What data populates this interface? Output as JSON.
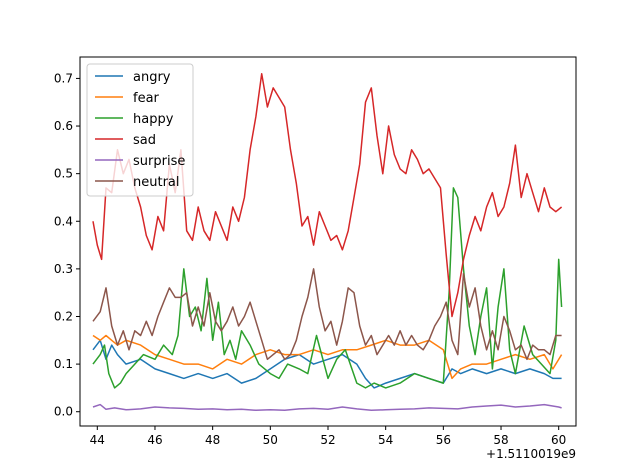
{
  "chart_data": {
    "type": "line",
    "title": "",
    "xlabel": "",
    "ylabel": "",
    "x_offset_label": "+1.5110019e9",
    "xlim": [
      43.4,
      60.6
    ],
    "ylim": [
      -0.03,
      0.745
    ],
    "x_ticks": [
      44,
      46,
      48,
      50,
      52,
      54,
      56,
      58,
      60
    ],
    "x_tick_labels": [
      "44",
      "46",
      "48",
      "50",
      "52",
      "54",
      "56",
      "58",
      "60"
    ],
    "y_ticks": [
      0.0,
      0.1,
      0.2,
      0.3,
      0.4,
      0.5,
      0.6,
      0.7
    ],
    "y_tick_labels": [
      "0.0",
      "0.1",
      "0.2",
      "0.3",
      "0.4",
      "0.5",
      "0.6",
      "0.7"
    ],
    "grid": false,
    "legend_position": "upper-left",
    "series": [
      {
        "name": "angry",
        "color": "#1f77b4",
        "x": [
          43.85,
          44.1,
          44.3,
          44.5,
          44.7,
          45.0,
          45.5,
          46.0,
          46.5,
          47.0,
          47.5,
          48.0,
          48.5,
          49.0,
          49.5,
          50.0,
          50.5,
          51.0,
          51.5,
          52.0,
          52.5,
          53.0,
          53.3,
          53.6,
          54.0,
          54.5,
          55.0,
          55.5,
          56.0,
          56.3,
          56.6,
          57.0,
          57.5,
          58.0,
          58.5,
          59.0,
          59.5,
          59.8,
          60.1
        ],
        "y": [
          0.13,
          0.15,
          0.11,
          0.14,
          0.12,
          0.1,
          0.11,
          0.09,
          0.08,
          0.07,
          0.08,
          0.07,
          0.08,
          0.06,
          0.07,
          0.09,
          0.11,
          0.12,
          0.1,
          0.11,
          0.12,
          0.1,
          0.07,
          0.05,
          0.06,
          0.07,
          0.08,
          0.07,
          0.06,
          0.09,
          0.08,
          0.09,
          0.08,
          0.09,
          0.08,
          0.09,
          0.08,
          0.07,
          0.07
        ]
      },
      {
        "name": "fear",
        "color": "#ff7f0e",
        "x": [
          43.85,
          44.1,
          44.3,
          44.5,
          44.7,
          45.0,
          45.5,
          46.0,
          46.5,
          47.0,
          47.5,
          48.0,
          48.5,
          49.0,
          49.5,
          50.0,
          50.5,
          51.0,
          51.5,
          52.0,
          52.5,
          53.0,
          53.5,
          54.0,
          54.5,
          55.0,
          55.5,
          56.0,
          56.3,
          56.6,
          57.0,
          57.5,
          58.0,
          58.5,
          59.0,
          59.5,
          59.8,
          60.1
        ],
        "y": [
          0.16,
          0.15,
          0.16,
          0.15,
          0.14,
          0.15,
          0.14,
          0.12,
          0.11,
          0.1,
          0.1,
          0.09,
          0.11,
          0.1,
          0.12,
          0.13,
          0.12,
          0.12,
          0.13,
          0.12,
          0.13,
          0.13,
          0.14,
          0.15,
          0.14,
          0.14,
          0.15,
          0.13,
          0.07,
          0.09,
          0.1,
          0.1,
          0.11,
          0.12,
          0.11,
          0.12,
          0.09,
          0.12
        ]
      },
      {
        "name": "happy",
        "color": "#2ca02c",
        "x": [
          43.85,
          44.1,
          44.25,
          44.4,
          44.6,
          44.8,
          45.0,
          45.3,
          45.6,
          46.0,
          46.3,
          46.6,
          46.8,
          47.0,
          47.2,
          47.4,
          47.6,
          47.8,
          48.0,
          48.2,
          48.4,
          48.6,
          48.8,
          49.0,
          49.3,
          49.6,
          50.0,
          50.3,
          50.6,
          51.0,
          51.3,
          51.6,
          52.0,
          52.3,
          52.6,
          53.0,
          53.3,
          53.6,
          54.0,
          54.5,
          55.0,
          55.5,
          56.0,
          56.2,
          56.35,
          56.5,
          56.7,
          56.9,
          57.1,
          57.3,
          57.5,
          57.7,
          57.9,
          58.1,
          58.3,
          58.5,
          58.8,
          59.1,
          59.4,
          59.7,
          59.9,
          60.0,
          60.1
        ],
        "y": [
          0.1,
          0.12,
          0.14,
          0.08,
          0.05,
          0.06,
          0.08,
          0.1,
          0.12,
          0.11,
          0.14,
          0.12,
          0.16,
          0.3,
          0.2,
          0.22,
          0.17,
          0.28,
          0.15,
          0.23,
          0.12,
          0.15,
          0.11,
          0.17,
          0.14,
          0.1,
          0.08,
          0.07,
          0.1,
          0.09,
          0.08,
          0.16,
          0.07,
          0.11,
          0.13,
          0.06,
          0.05,
          0.06,
          0.05,
          0.06,
          0.08,
          0.07,
          0.06,
          0.25,
          0.47,
          0.45,
          0.3,
          0.18,
          0.12,
          0.2,
          0.26,
          0.09,
          0.22,
          0.3,
          0.13,
          0.08,
          0.18,
          0.12,
          0.1,
          0.08,
          0.15,
          0.32,
          0.22
        ]
      },
      {
        "name": "sad",
        "color": "#d62728",
        "x": [
          43.85,
          44.0,
          44.15,
          44.3,
          44.5,
          44.7,
          44.9,
          45.1,
          45.3,
          45.5,
          45.7,
          45.9,
          46.1,
          46.3,
          46.5,
          46.7,
          46.9,
          47.1,
          47.3,
          47.5,
          47.7,
          47.9,
          48.1,
          48.3,
          48.5,
          48.7,
          48.9,
          49.1,
          49.3,
          49.5,
          49.7,
          49.9,
          50.1,
          50.3,
          50.5,
          50.7,
          50.9,
          51.1,
          51.3,
          51.5,
          51.7,
          51.9,
          52.1,
          52.3,
          52.5,
          52.7,
          52.9,
          53.1,
          53.3,
          53.5,
          53.7,
          53.9,
          54.1,
          54.3,
          54.5,
          54.7,
          54.9,
          55.1,
          55.3,
          55.5,
          55.7,
          55.9,
          56.1,
          56.3,
          56.5,
          56.7,
          56.9,
          57.1,
          57.3,
          57.5,
          57.7,
          57.9,
          58.1,
          58.3,
          58.5,
          58.7,
          58.9,
          59.1,
          59.3,
          59.5,
          59.7,
          59.9,
          60.1
        ],
        "y": [
          0.4,
          0.35,
          0.32,
          0.47,
          0.46,
          0.55,
          0.5,
          0.53,
          0.47,
          0.43,
          0.37,
          0.34,
          0.41,
          0.38,
          0.52,
          0.46,
          0.55,
          0.38,
          0.36,
          0.43,
          0.38,
          0.36,
          0.42,
          0.39,
          0.36,
          0.43,
          0.4,
          0.45,
          0.55,
          0.62,
          0.71,
          0.64,
          0.68,
          0.66,
          0.64,
          0.55,
          0.48,
          0.39,
          0.41,
          0.35,
          0.42,
          0.39,
          0.36,
          0.37,
          0.34,
          0.38,
          0.45,
          0.52,
          0.65,
          0.68,
          0.58,
          0.5,
          0.6,
          0.54,
          0.51,
          0.5,
          0.55,
          0.53,
          0.5,
          0.51,
          0.49,
          0.47,
          0.33,
          0.2,
          0.25,
          0.32,
          0.37,
          0.41,
          0.38,
          0.43,
          0.46,
          0.41,
          0.43,
          0.48,
          0.56,
          0.45,
          0.5,
          0.46,
          0.42,
          0.47,
          0.43,
          0.42,
          0.43
        ]
      },
      {
        "name": "surprise",
        "color": "#9467bd",
        "x": [
          43.85,
          44.1,
          44.3,
          44.6,
          45.0,
          45.5,
          46.0,
          46.5,
          47.0,
          47.5,
          48.0,
          48.5,
          49.0,
          49.5,
          50.0,
          50.5,
          51.0,
          51.5,
          52.0,
          52.5,
          53.0,
          53.5,
          54.0,
          54.5,
          55.0,
          55.5,
          56.0,
          56.5,
          57.0,
          57.5,
          58.0,
          58.5,
          59.0,
          59.5,
          60.0,
          60.1
        ],
        "y": [
          0.01,
          0.015,
          0.005,
          0.008,
          0.004,
          0.006,
          0.01,
          0.008,
          0.007,
          0.005,
          0.006,
          0.004,
          0.005,
          0.003,
          0.004,
          0.003,
          0.006,
          0.007,
          0.005,
          0.01,
          0.006,
          0.003,
          0.004,
          0.005,
          0.006,
          0.008,
          0.007,
          0.006,
          0.01,
          0.012,
          0.014,
          0.01,
          0.012,
          0.015,
          0.01,
          0.008
        ]
      },
      {
        "name": "neutral",
        "color": "#8c564b",
        "x": [
          43.85,
          44.1,
          44.3,
          44.5,
          44.7,
          44.9,
          45.1,
          45.3,
          45.5,
          45.7,
          45.9,
          46.1,
          46.3,
          46.5,
          46.7,
          46.9,
          47.1,
          47.3,
          47.5,
          47.7,
          47.9,
          48.1,
          48.3,
          48.5,
          48.7,
          48.9,
          49.1,
          49.3,
          49.5,
          49.7,
          49.9,
          50.1,
          50.3,
          50.5,
          50.7,
          50.9,
          51.1,
          51.3,
          51.5,
          51.7,
          51.9,
          52.1,
          52.3,
          52.5,
          52.7,
          52.9,
          53.1,
          53.3,
          53.5,
          53.7,
          53.9,
          54.1,
          54.3,
          54.5,
          54.7,
          54.9,
          55.1,
          55.3,
          55.5,
          55.7,
          55.9,
          56.1,
          56.3,
          56.5,
          56.7,
          56.9,
          57.1,
          57.3,
          57.5,
          57.7,
          57.9,
          58.1,
          58.3,
          58.5,
          58.7,
          58.9,
          59.1,
          59.3,
          59.5,
          59.7,
          59.9,
          60.1
        ],
        "y": [
          0.19,
          0.21,
          0.26,
          0.18,
          0.14,
          0.17,
          0.13,
          0.17,
          0.16,
          0.19,
          0.16,
          0.2,
          0.23,
          0.26,
          0.24,
          0.24,
          0.25,
          0.18,
          0.22,
          0.18,
          0.25,
          0.19,
          0.17,
          0.19,
          0.22,
          0.18,
          0.2,
          0.23,
          0.19,
          0.15,
          0.11,
          0.12,
          0.13,
          0.11,
          0.12,
          0.15,
          0.2,
          0.24,
          0.3,
          0.22,
          0.17,
          0.19,
          0.14,
          0.19,
          0.26,
          0.25,
          0.18,
          0.14,
          0.16,
          0.12,
          0.14,
          0.16,
          0.14,
          0.17,
          0.14,
          0.16,
          0.14,
          0.13,
          0.15,
          0.18,
          0.2,
          0.23,
          0.15,
          0.12,
          0.29,
          0.22,
          0.26,
          0.18,
          0.13,
          0.17,
          0.13,
          0.2,
          0.17,
          0.13,
          0.14,
          0.11,
          0.14,
          0.13,
          0.13,
          0.12,
          0.16,
          0.16
        ]
      }
    ]
  }
}
